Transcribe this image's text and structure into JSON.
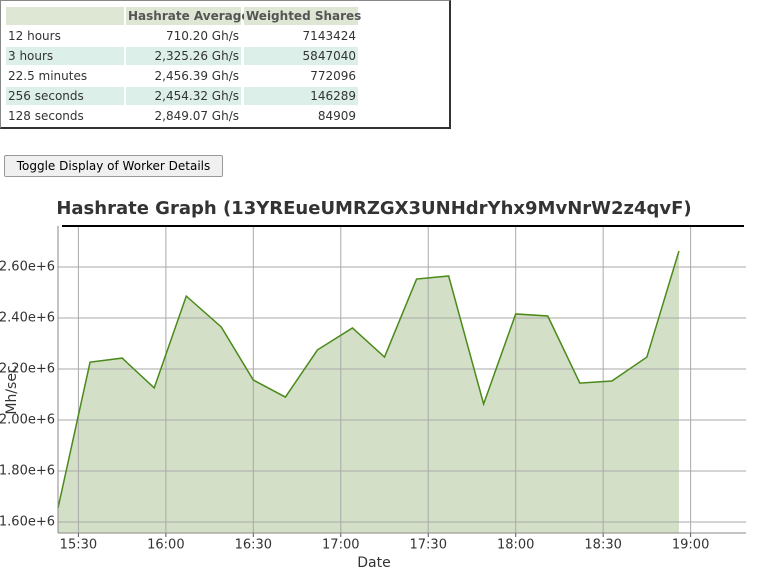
{
  "table": {
    "headers": [
      "Hashrate Average",
      "Weighted Shares"
    ],
    "rows": [
      [
        "12 hours",
        "710.20 Gh/s",
        "7143424"
      ],
      [
        "3 hours",
        "2,325.26 Gh/s",
        "5847040"
      ],
      [
        "22.5 minutes",
        "2,456.39 Gh/s",
        "772096"
      ],
      [
        "256 seconds",
        "2,454.32 Gh/s",
        "146289"
      ],
      [
        "128 seconds",
        "2,849.07 Gh/s",
        "84909"
      ]
    ]
  },
  "button": "Toggle Display of Worker Details",
  "chart_data": {
    "type": "line",
    "title": "Hashrate Graph (13YREueUMRZGX3UNHdrYhx9MvNrW2z4qvF)",
    "x_label": "Date",
    "y_label": "Mh/sec",
    "x": [
      "15:23",
      "15:34",
      "15:45",
      "15:56",
      "16:07",
      "16:19",
      "16:30",
      "16:41",
      "16:52",
      "17:04",
      "17:15",
      "17:26",
      "17:37",
      "17:49",
      "18:00",
      "18:11",
      "18:22",
      "18:33",
      "18:45",
      "18:56"
    ],
    "values": [
      1655000,
      2227000,
      2243000,
      2126000,
      2486000,
      2365000,
      2157000,
      2090000,
      2275000,
      2361000,
      2247000,
      2553000,
      2565000,
      2063000,
      2416000,
      2408000,
      2145000,
      2153000,
      2247000,
      2663000
    ],
    "color": "#4a8a1a",
    "fill": "#d3dfc6",
    "xlim": [
      "15:23",
      "19:19"
    ],
    "xticks": [
      "15:30",
      "16:00",
      "16:30",
      "17:00",
      "17:30",
      "18:00",
      "18:30",
      "19:00"
    ],
    "ylim": [
      1557000,
      2761000
    ],
    "yticks": [
      {
        "value": 1600000,
        "label": "1.60e+6"
      },
      {
        "value": 1800000,
        "label": "1.80e+6"
      },
      {
        "value": 2000000,
        "label": "2.00e+6"
      },
      {
        "value": 2200000,
        "label": "2.20e+6"
      },
      {
        "value": 2400000,
        "label": "2.40e+6"
      },
      {
        "value": 2600000,
        "label": "2.60e+6"
      }
    ],
    "grid": true
  }
}
